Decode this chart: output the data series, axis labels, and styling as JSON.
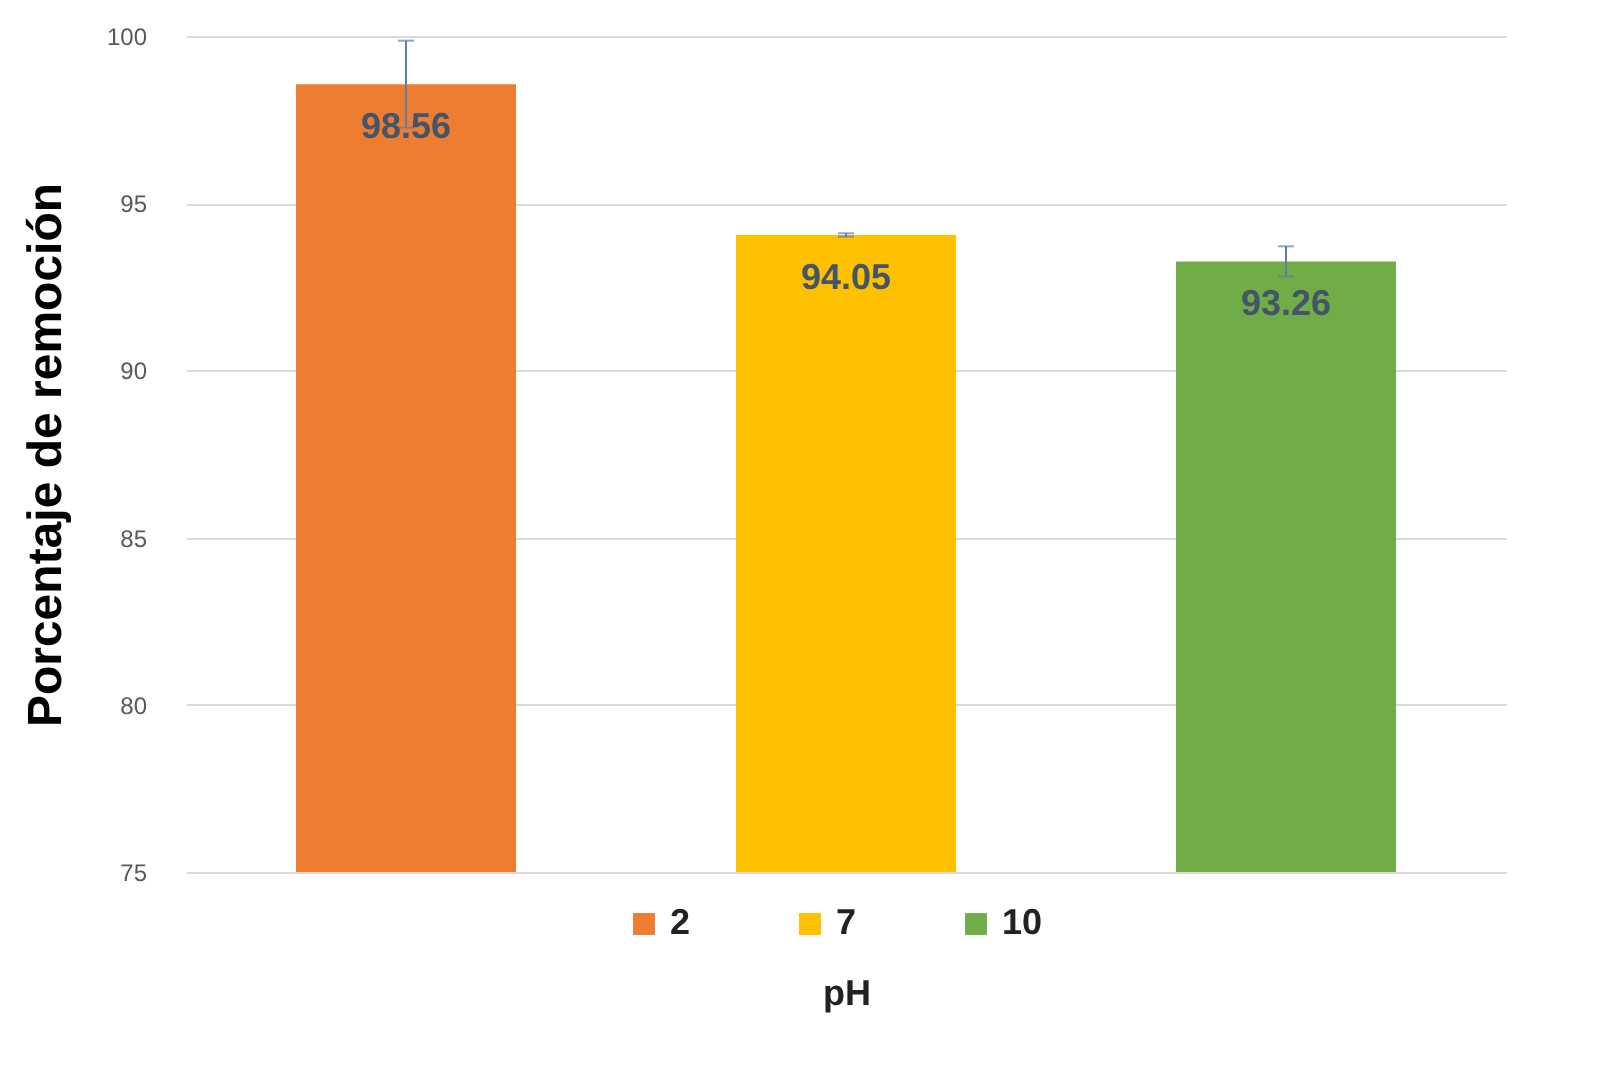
{
  "chart_data": {
    "type": "bar",
    "ylabel": "Porcentaje de remoción",
    "xlabel": "pH",
    "categories": [
      null
    ],
    "series": [
      {
        "name": "2",
        "color": "#ed7d31",
        "values": [
          98.56
        ],
        "errors": [
          1.3
        ]
      },
      {
        "name": "7",
        "color": "#ffc000",
        "values": [
          94.05
        ],
        "errors": [
          0.05
        ]
      },
      {
        "name": "10",
        "color": "#70ad47",
        "values": [
          93.26
        ],
        "errors": [
          0.45
        ]
      }
    ],
    "ylim": [
      75,
      100
    ],
    "yticks": [
      75,
      80,
      85,
      90,
      95,
      100
    ],
    "grid": "y",
    "legend": "bottom",
    "tick_labels": "y",
    "data_labels": true
  }
}
